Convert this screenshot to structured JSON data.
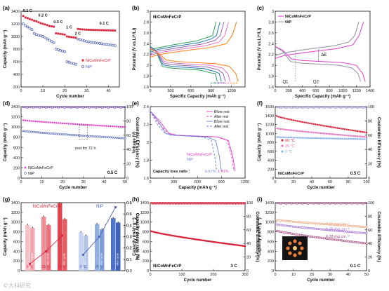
{
  "watermark": "©大科研究",
  "colors": {
    "ni": "#4a5fb6",
    "nicr": "#d7263d",
    "pink": "#e23fc5",
    "blue": "#5f7fd0",
    "gray": "#8e8ea0"
  },
  "chart_data": [
    {
      "id": "a",
      "panel_label": "(a)",
      "type": "scatter",
      "xlabel": "Cycle number",
      "ylabel": "Capacity (mAh g⁻¹)",
      "xlim": [
        0,
        45
      ],
      "ylim": [
        200,
        1400
      ],
      "xticks": [
        0,
        10,
        20,
        30,
        40
      ],
      "yticks": [
        200,
        400,
        600,
        800,
        1000,
        1200,
        1400
      ],
      "rate_labels": [
        "0.1 C",
        "0.2 C",
        "0.5 C",
        "1 C",
        "2 C",
        "0.1 C"
      ],
      "legend": "right",
      "series": [
        {
          "name": "NiCoMnFeCrP",
          "color": "#d7263d",
          "values": [
            1325,
            1300,
            1290,
            1275,
            1265,
            1250,
            1240,
            1225,
            1210,
            1200,
            1190,
            1180,
            1165,
            1160,
            1155,
            1050,
            1045,
            1040,
            1035,
            1030,
            1000,
            995,
            990,
            985,
            980,
            1120,
            1115,
            1112,
            1110,
            1108,
            1106,
            1105,
            1104,
            1103,
            1102,
            1101,
            1100,
            1099,
            1098,
            1097,
            1096,
            1095,
            1094
          ]
        },
        {
          "name": "NiP",
          "color": "#4a5fb6",
          "values": [
            1200,
            1170,
            1150,
            1130,
            1110,
            1050,
            1030,
            1020,
            1010,
            1000,
            980,
            960,
            940,
            920,
            900,
            800,
            790,
            780,
            770,
            760,
            600,
            590,
            580,
            570,
            560,
            960,
            950,
            940,
            930,
            920,
            915,
            910,
            905,
            900,
            895,
            890,
            885,
            880,
            875,
            870,
            865,
            860,
            855
          ]
        }
      ]
    },
    {
      "id": "b",
      "panel_label": "(b)",
      "type": "line",
      "xlabel": "Specific Capacity (mAh g⁻¹)",
      "ylabel": "Potential (V vs.Li⁺/Li)",
      "xlim": [
        0,
        1400
      ],
      "ylim": [
        1.6,
        3.0
      ],
      "xticks": [
        0,
        300,
        600,
        900,
        1200
      ],
      "yticks": [
        1.6,
        1.8,
        2.0,
        2.2,
        2.4,
        2.6,
        2.8,
        3.0
      ],
      "inset_title": "NiCoMnFeCrP",
      "rate_labels": [
        "2 C",
        "1 C",
        "0.5 C",
        "0.2 C",
        "0.1 C"
      ],
      "series": [
        {
          "name": "2 C",
          "color": "#2e9b5b",
          "capacity": 990
        },
        {
          "name": "1 C",
          "color": "#1f77b4",
          "capacity": 1050
        },
        {
          "name": "0.5 C",
          "color": "#9467bd",
          "capacity": 1110
        },
        {
          "name": "0.2 C",
          "color": "#e377c2",
          "capacity": 1180
        },
        {
          "name": "0.1 C",
          "color": "#ff7f0e",
          "capacity": 1300
        }
      ]
    },
    {
      "id": "c",
      "panel_label": "(c)",
      "type": "line",
      "xlabel": "Specific Capacity (mAh g⁻¹)",
      "ylabel": "Potential (V vs.Li⁺/Li)",
      "xlim": [
        0,
        1400
      ],
      "ylim": [
        1.6,
        3.0
      ],
      "xticks": [
        0,
        200,
        400,
        600,
        800,
        1000,
        1200,
        1400
      ],
      "yticks": [
        1.6,
        1.8,
        2.0,
        2.2,
        2.4,
        2.6,
        2.8,
        3.0
      ],
      "annotations": [
        "ΔE",
        "Q1",
        "Q2"
      ],
      "legend": "top-left",
      "series": [
        {
          "name": "NiCoMnFeCrP",
          "color": "#e23fc5",
          "capacity": 1330
        },
        {
          "name": "NiP",
          "color": "#8e8ea0",
          "capacity": 1260
        }
      ]
    },
    {
      "id": "d",
      "panel_label": "(d)",
      "type": "scatter",
      "xlabel": "Cycle number",
      "ylabel": "Capacity (mAh g⁻¹)",
      "y2label": "Coulombic Efficiency (%)",
      "xlim": [
        0,
        50
      ],
      "ylim": [
        0,
        1400
      ],
      "y2lim": [
        0,
        100
      ],
      "xticks": [
        0,
        10,
        20,
        30,
        40,
        50
      ],
      "yticks": [
        0,
        200,
        400,
        600,
        800,
        1000,
        1200,
        1400
      ],
      "y2ticks": [
        0,
        20,
        40,
        60,
        80,
        100
      ],
      "annotation": "rest for 72 h",
      "rate_label": "0.5 C",
      "legend": "bottom-left",
      "series": [
        {
          "name": "NiCoMnFeCrP",
          "color": "#e23fc5",
          "start": 1140,
          "end": 1000,
          "ce": 99
        },
        {
          "name": "NiP",
          "color": "#4a5fb6",
          "start": 930,
          "end": 780,
          "ce": 99
        }
      ]
    },
    {
      "id": "e",
      "panel_label": "(e)",
      "type": "line",
      "xlabel": "Capacity (mAh g⁻¹)",
      "ylabel": "Voltage (V)",
      "xlim": [
        0,
        1200
      ],
      "ylim": [
        1.6,
        2.4
      ],
      "xticks": [
        0,
        300,
        600,
        900,
        1200
      ],
      "yticks": [
        1.6,
        1.8,
        2.0,
        2.2,
        2.4
      ],
      "legend_labels": [
        "Bfore rest",
        "After rest",
        "Bfore rest",
        "After rest"
      ],
      "sample_labels": [
        "NiCoMnFeCrP",
        "NiP"
      ],
      "annotation": "Capacity loss ratio : ",
      "loss_ratios": [
        "6.67%",
        "1.41%"
      ],
      "series": [
        {
          "name": "NiCoMnFeCrP Bfore rest",
          "color": "#e23fc5",
          "capacity": 1075,
          "dash": false
        },
        {
          "name": "NiCoMnFeCrP After rest",
          "color": "#e23fc5",
          "capacity": 1060,
          "dash": true
        },
        {
          "name": "NiP Bfore rest",
          "color": "#6f7fd6",
          "capacity": 900,
          "dash": false
        },
        {
          "name": "NiP After rest",
          "color": "#6f7fd6",
          "capacity": 840,
          "dash": true
        }
      ]
    },
    {
      "id": "f",
      "panel_label": "(f)",
      "type": "scatter",
      "xlabel": "Cycle number",
      "ylabel": "Capacity (mAh g⁻¹)",
      "y2label": "Coulombic Efficiency (%)",
      "xlim": [
        0,
        100
      ],
      "ylim": [
        0,
        1600
      ],
      "y2lim": [
        0,
        100
      ],
      "xticks": [
        0,
        20,
        40,
        60,
        80,
        100
      ],
      "yticks": [
        0,
        200,
        400,
        600,
        800,
        1000,
        1200,
        1400,
        1600
      ],
      "y2ticks": [
        0,
        20,
        40,
        60,
        80,
        100
      ],
      "sample_label": "NiCoMnFeCrP",
      "rate_label": "0.5 C",
      "legend": "left",
      "series": [
        {
          "name": "60 °C",
          "color": "#d7263d",
          "start": 1400,
          "end": 1020
        },
        {
          "name": "25 °C",
          "color": "#e377c2",
          "start": 1120,
          "end": 920
        },
        {
          "name": "0 °C",
          "color": "#8fb4e8",
          "start": 920,
          "end": 870
        }
      ]
    },
    {
      "id": "g",
      "panel_label": "(g)",
      "type": "bar",
      "ylabel": "Capacity (mAh g⁻¹)",
      "y2label": "Capacity decay rate (%)",
      "ylim": [
        0,
        1400
      ],
      "y2lim": [
        0,
        0.6
      ],
      "yticks": [
        0,
        200,
        400,
        600,
        800,
        1000,
        1200,
        1400
      ],
      "y2ticks": [
        0.0,
        0.1,
        0.2,
        0.3,
        0.4,
        0.5,
        0.6
      ],
      "group_labels": [
        "NiCoMnFeCrP",
        "NiP"
      ],
      "bar_labels": [
        "after cycle",
        "after cycle",
        "after cycle"
      ],
      "temperatures": [
        "0 °C",
        "25 °C",
        "60 °C"
      ],
      "groups": [
        {
          "name": "NiCoMnFeCrP",
          "pairs": [
            [
              940,
              880
            ],
            [
              1110,
              940
            ],
            [
              1390,
              1060
            ]
          ],
          "decay": [
            0.06,
            0.17,
            0.31
          ]
        },
        {
          "name": "NiP",
          "pairs": [
            [
              790,
              720
            ],
            [
              960,
              850
            ],
            [
              1080,
              990
            ]
          ],
          "decay": [
            0.14,
            0.3,
            0.56
          ]
        }
      ]
    },
    {
      "id": "h",
      "panel_label": "(h)",
      "type": "scatter",
      "xlabel": "Cycle number",
      "ylabel": "Capacity (mAh g⁻¹)",
      "y2label": "Coulombic Efficiency (%)",
      "xlim": [
        0,
        300
      ],
      "ylim": [
        0,
        1400
      ],
      "y2lim": [
        0,
        100
      ],
      "xticks": [
        0,
        100,
        200,
        300
      ],
      "yticks": [
        0,
        200,
        400,
        600,
        800,
        1000,
        1200,
        1400
      ],
      "y2ticks": [
        0,
        20,
        40,
        60,
        80,
        100
      ],
      "sample_label": "NiCoMnFeCrP",
      "rate_label": "3 C",
      "series": [
        {
          "name": "capacity",
          "color": "#d7263d",
          "start": 820,
          "end": 505,
          "ce": 99
        }
      ]
    },
    {
      "id": "i",
      "panel_label": "(i)",
      "type": "scatter",
      "xlabel": "Cycle number",
      "ylabel": "Capacity (mAh g⁻¹)",
      "y2label": "Coulombic Efficiency (%)",
      "xlim": [
        0,
        50
      ],
      "ylim": [
        0,
        1400
      ],
      "y2lim": [
        0,
        100
      ],
      "xticks": [
        0,
        10,
        20,
        30,
        40,
        50
      ],
      "yticks": [
        0,
        200,
        400,
        600,
        800,
        1000,
        1200,
        1400
      ],
      "y2ticks": [
        0,
        20,
        40,
        60,
        80,
        100
      ],
      "rate_label": "0.1 C",
      "series": [
        {
          "name": "4.54 mg cm⁻²",
          "color": "#f0a07a",
          "start": 1050,
          "end": 900
        },
        {
          "name": "5.25 mg cm⁻²",
          "color": "#a06ad8",
          "start": 960,
          "end": 770
        },
        {
          "name": "6.28 mg cm⁻²",
          "color": "#a33b7a",
          "start": 830,
          "end": 560
        }
      ]
    }
  ]
}
